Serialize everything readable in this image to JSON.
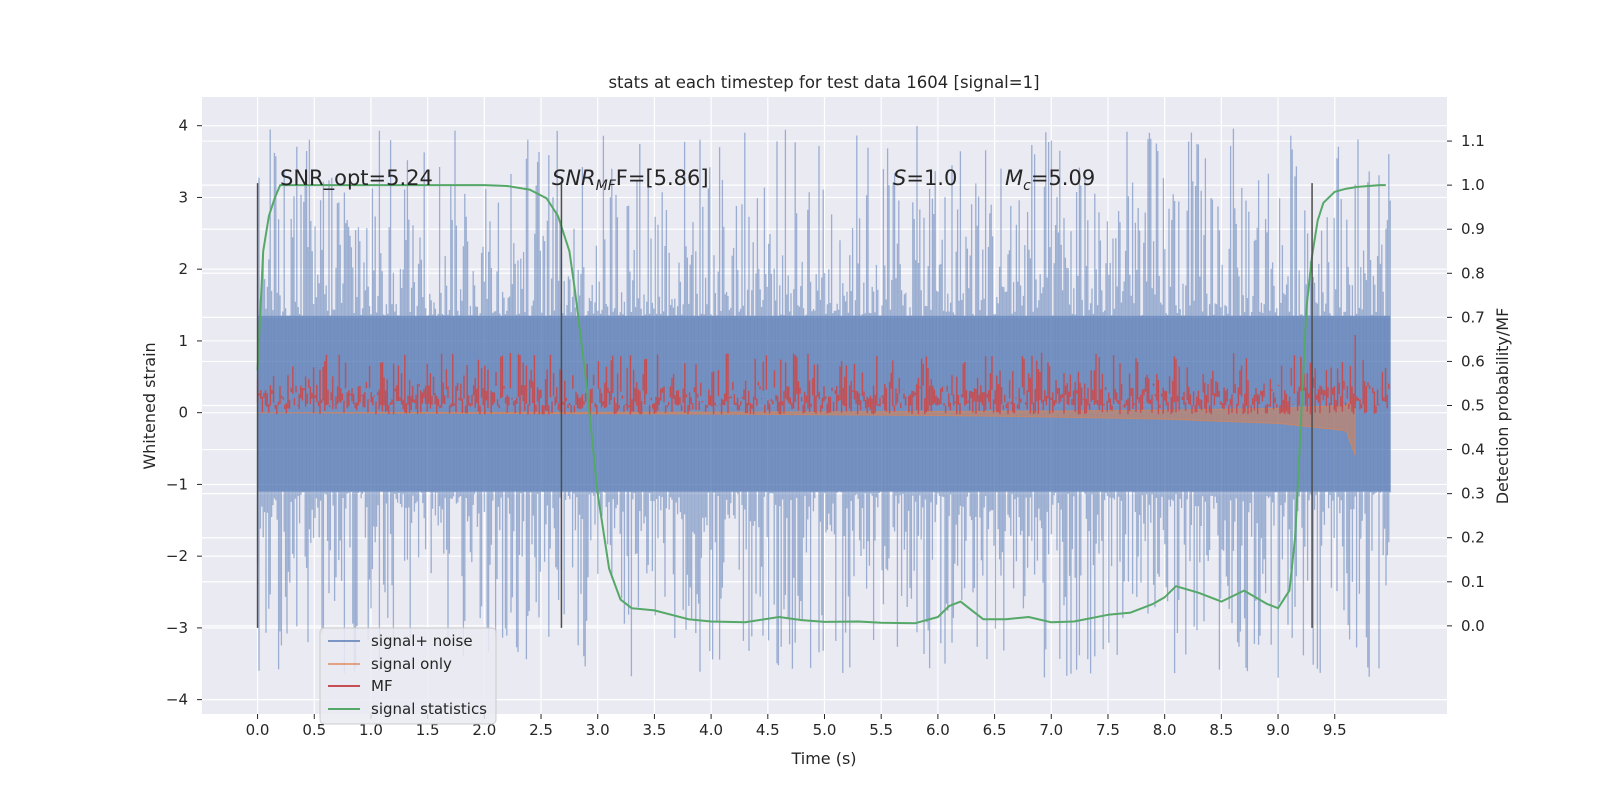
{
  "chart_data": {
    "type": "line",
    "title": "stats at each timestep for test data 1604 [signal=1]",
    "xlabel": "Time (s)",
    "ylabel": "Whitened strain",
    "ylabel_right": "Detection probability/MF",
    "xlim": [
      -0.49,
      10.49
    ],
    "ylim": [
      -4.2,
      4.4
    ],
    "ylim_right": [
      -0.2,
      1.2
    ],
    "x_ticks": [
      "0.0",
      "0.5",
      "1.0",
      "1.5",
      "2.0",
      "2.5",
      "3.0",
      "3.5",
      "4.0",
      "4.5",
      "5.0",
      "5.5",
      "6.0",
      "6.5",
      "7.0",
      "7.5",
      "8.0",
      "8.5",
      "9.0",
      "9.5"
    ],
    "y_ticks": [
      "4",
      "3",
      "2",
      "1",
      "0",
      "−1",
      "−2",
      "−3",
      "−4"
    ],
    "y_ticks_right": [
      "1.1",
      "1.0",
      "0.9",
      "0.8",
      "0.7",
      "0.6",
      "0.5",
      "0.4",
      "0.3",
      "0.2",
      "0.1",
      "0.0"
    ],
    "grid": true,
    "legend_position": "lower-left",
    "annotations": {
      "snr_opt": "SNR_opt=5.24",
      "snr_mf_base": "SNR",
      "snr_mf_sub": "MF",
      "snr_mf_rest": "F=[5.86]",
      "s_label": "S",
      "s_value": "=1.0",
      "mc_base": "M",
      "mc_sub": "c",
      "mc_value": "=5.09"
    },
    "vertical_markers": [
      0.0,
      2.68,
      9.3
    ],
    "colors": {
      "noise": "#4c72b0",
      "signal": "#dd8452",
      "mf": "#c44e52",
      "stat": "#55a868",
      "marker": "#4d4d4d",
      "background": "#eaeaf2",
      "grid": "#ffffff"
    },
    "series": [
      {
        "name": "signal+ noise",
        "axis": "left",
        "envelope": {
          "x_range": [
            0.0,
            9.99
          ],
          "core": [
            -1.1,
            1.35
          ],
          "spikes_up_to": 4.0,
          "spikes_down_to": -3.7
        }
      },
      {
        "name": "signal only",
        "axis": "left",
        "x": [
          0.0,
          2.0,
          4.0,
          6.0,
          7.0,
          8.0,
          9.0,
          9.6,
          9.68
        ],
        "y": [
          0.0,
          -0.01,
          -0.02,
          -0.04,
          -0.06,
          -0.09,
          -0.15,
          -0.25,
          -0.6
        ]
      },
      {
        "name": "MF",
        "axis": "right",
        "x_range": [
          0.0,
          9.99
        ],
        "level_range": [
          0.48,
          0.6
        ],
        "peak": {
          "x": 9.68,
          "y": 0.66
        }
      },
      {
        "name": "signal statistics",
        "axis": "right",
        "x": [
          0.0,
          0.05,
          0.1,
          0.15,
          0.2,
          0.5,
          1.0,
          1.5,
          2.0,
          2.2,
          2.4,
          2.55,
          2.65,
          2.75,
          2.8,
          2.9,
          3.0,
          3.1,
          3.2,
          3.3,
          3.5,
          3.8,
          4.0,
          4.3,
          4.6,
          4.8,
          5.0,
          5.3,
          5.5,
          5.8,
          6.0,
          6.1,
          6.2,
          6.3,
          6.4,
          6.6,
          6.8,
          7.0,
          7.2,
          7.5,
          7.7,
          7.9,
          8.0,
          8.1,
          8.3,
          8.5,
          8.7,
          8.9,
          9.0,
          9.1,
          9.15,
          9.2,
          9.25,
          9.3,
          9.35,
          9.4,
          9.5,
          9.6,
          9.7,
          9.8,
          9.9,
          9.95
        ],
        "y": [
          0.58,
          0.85,
          0.93,
          0.97,
          1.0,
          1.0,
          1.0,
          1.0,
          1.0,
          0.998,
          0.99,
          0.97,
          0.93,
          0.85,
          0.76,
          0.55,
          0.3,
          0.13,
          0.06,
          0.04,
          0.035,
          0.015,
          0.01,
          0.008,
          0.02,
          0.013,
          0.009,
          0.01,
          0.007,
          0.006,
          0.02,
          0.045,
          0.055,
          0.035,
          0.015,
          0.015,
          0.02,
          0.008,
          0.01,
          0.025,
          0.03,
          0.05,
          0.065,
          0.09,
          0.075,
          0.055,
          0.08,
          0.05,
          0.04,
          0.08,
          0.2,
          0.45,
          0.72,
          0.84,
          0.92,
          0.96,
          0.985,
          0.992,
          0.996,
          0.998,
          1.0,
          1.0
        ]
      }
    ]
  }
}
